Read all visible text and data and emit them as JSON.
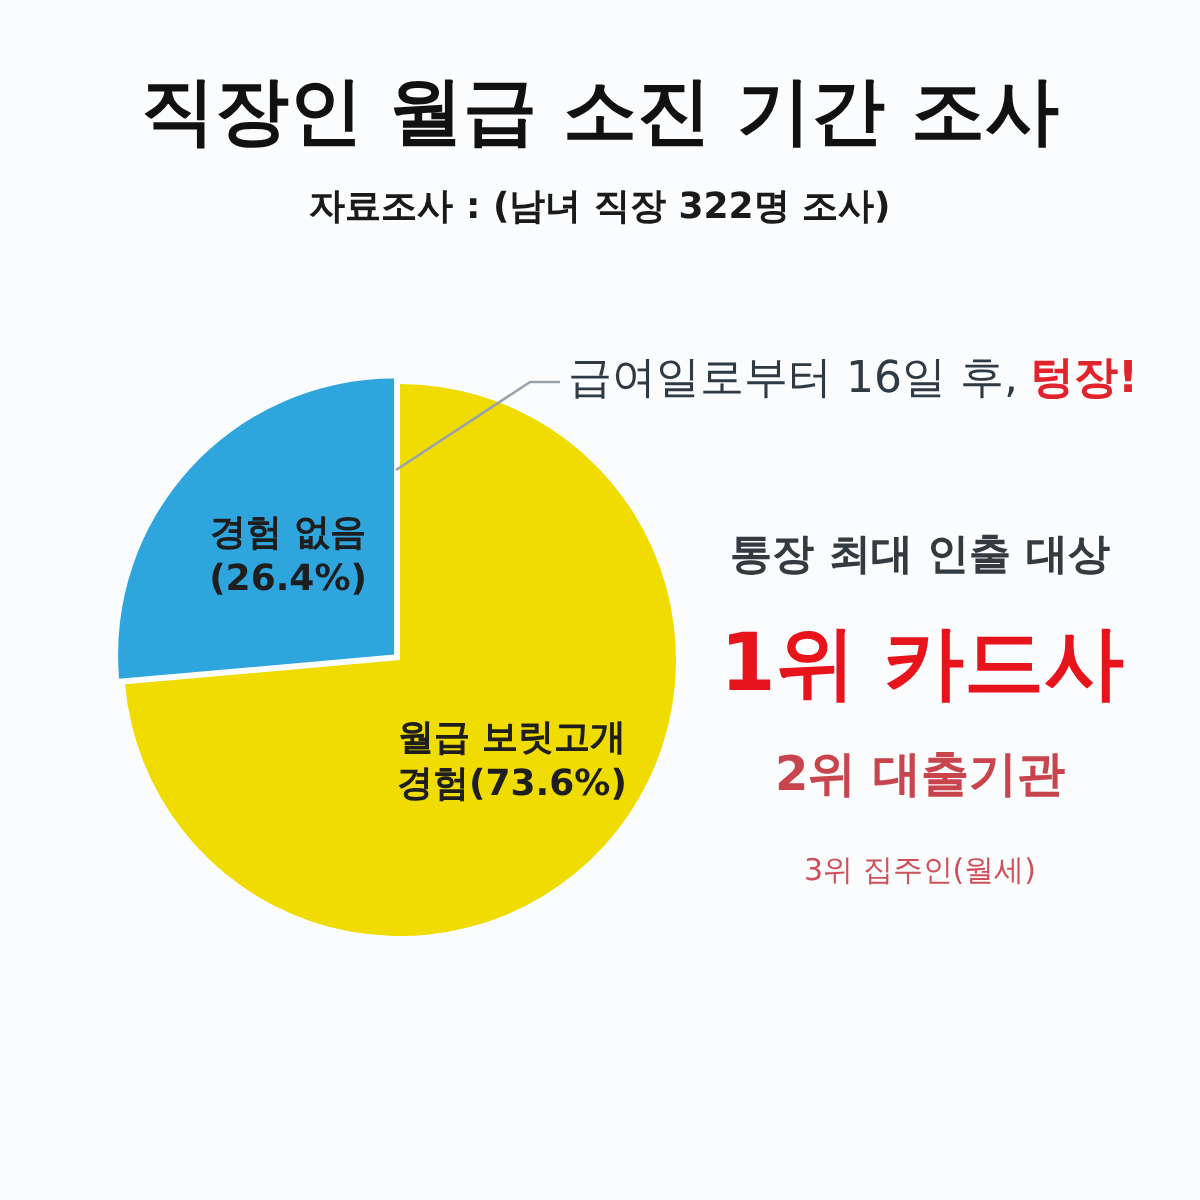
{
  "chart_data": {
    "type": "pie",
    "title": "직장인 월급 소진 기간 조사",
    "subtitle": "자료조사 : (남녀 직장 322명 조사)",
    "categories": [
      "월급 보릿고개 경험",
      "경험 없음"
    ],
    "values": [
      73.6,
      26.4
    ],
    "colors": [
      "#f0dc00",
      "#2ea5dc"
    ],
    "value_labels": [
      "(73.6%)",
      "(26.4%)"
    ],
    "legend": false,
    "annotations": [
      "급여일로부터 16일 후,",
      "텅장!",
      "통장 최대 인출 대상",
      "1위 카드사",
      "2위 대출기관",
      "3위 집주인(월세)"
    ]
  }
}
